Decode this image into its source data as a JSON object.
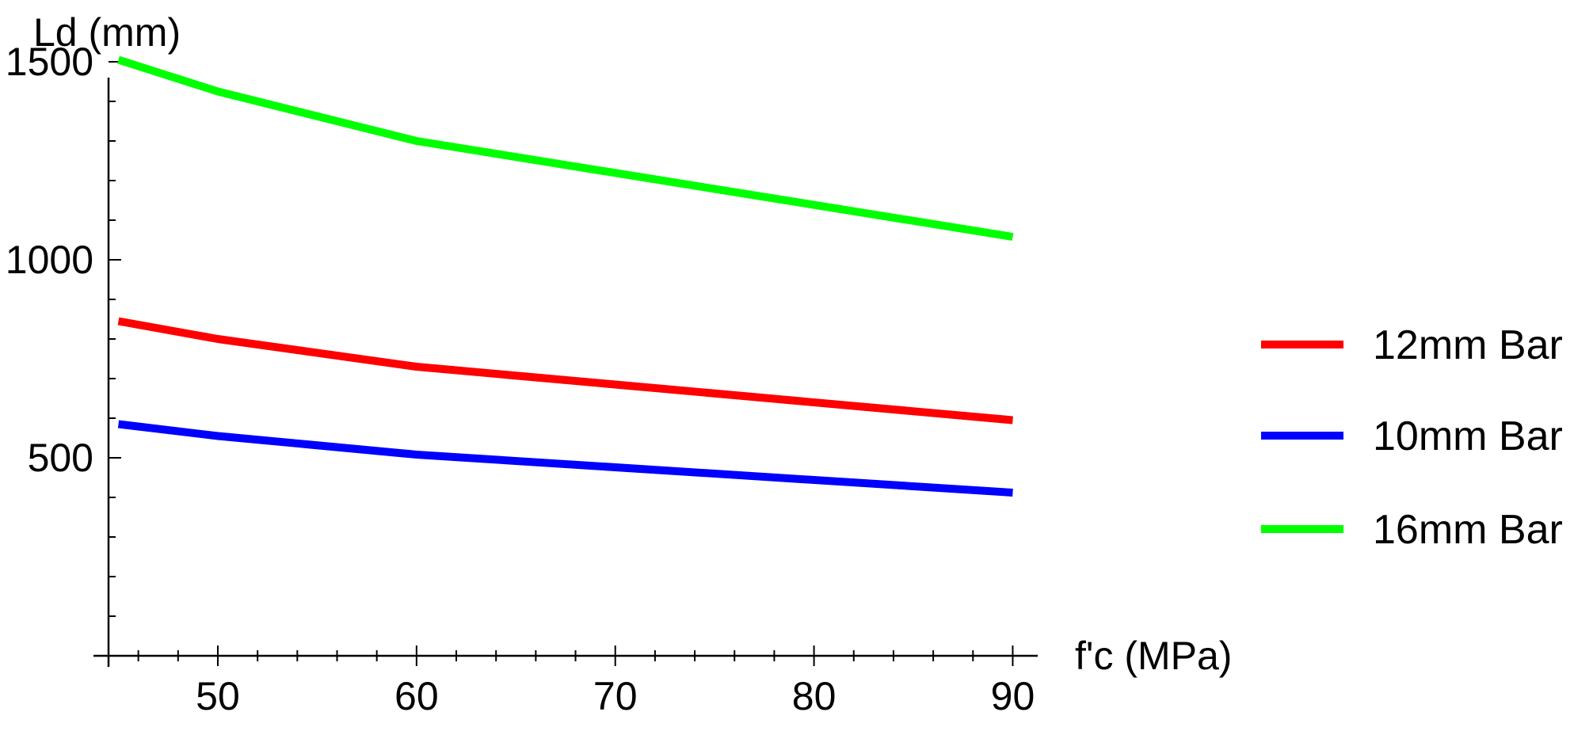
{
  "chart_data": {
    "type": "line",
    "title": "",
    "xlabel": "f'c (MPa)",
    "ylabel": "Ld (mm)",
    "xlim": [
      44.5,
      90.5
    ],
    "ylim": [
      0,
      1600
    ],
    "x_ticks": [
      50,
      60,
      70,
      80,
      90
    ],
    "x_minor_ticks": [
      46,
      48,
      52,
      54,
      56,
      58,
      62,
      64,
      66,
      68,
      72,
      74,
      76,
      78,
      82,
      84,
      86,
      88
    ],
    "y_ticks": [
      500,
      1000,
      1500
    ],
    "y_minor_ticks": [
      100,
      200,
      300,
      400,
      600,
      700,
      800,
      900,
      1100,
      1200,
      1300,
      1400
    ],
    "grid": false,
    "legend_position": "right",
    "x": [
      45,
      50,
      60,
      90
    ],
    "series": [
      {
        "name": "12mm Bar",
        "color": "#ff0000",
        "values": [
          845,
          800,
          730,
          595
        ]
      },
      {
        "name": "10mm Bar",
        "color": "#0000ff",
        "values": [
          585,
          555,
          508,
          412
        ]
      },
      {
        "name": "16mm Bar",
        "color": "#00ff00",
        "values": [
          1505,
          1425,
          1300,
          1058
        ]
      }
    ]
  }
}
